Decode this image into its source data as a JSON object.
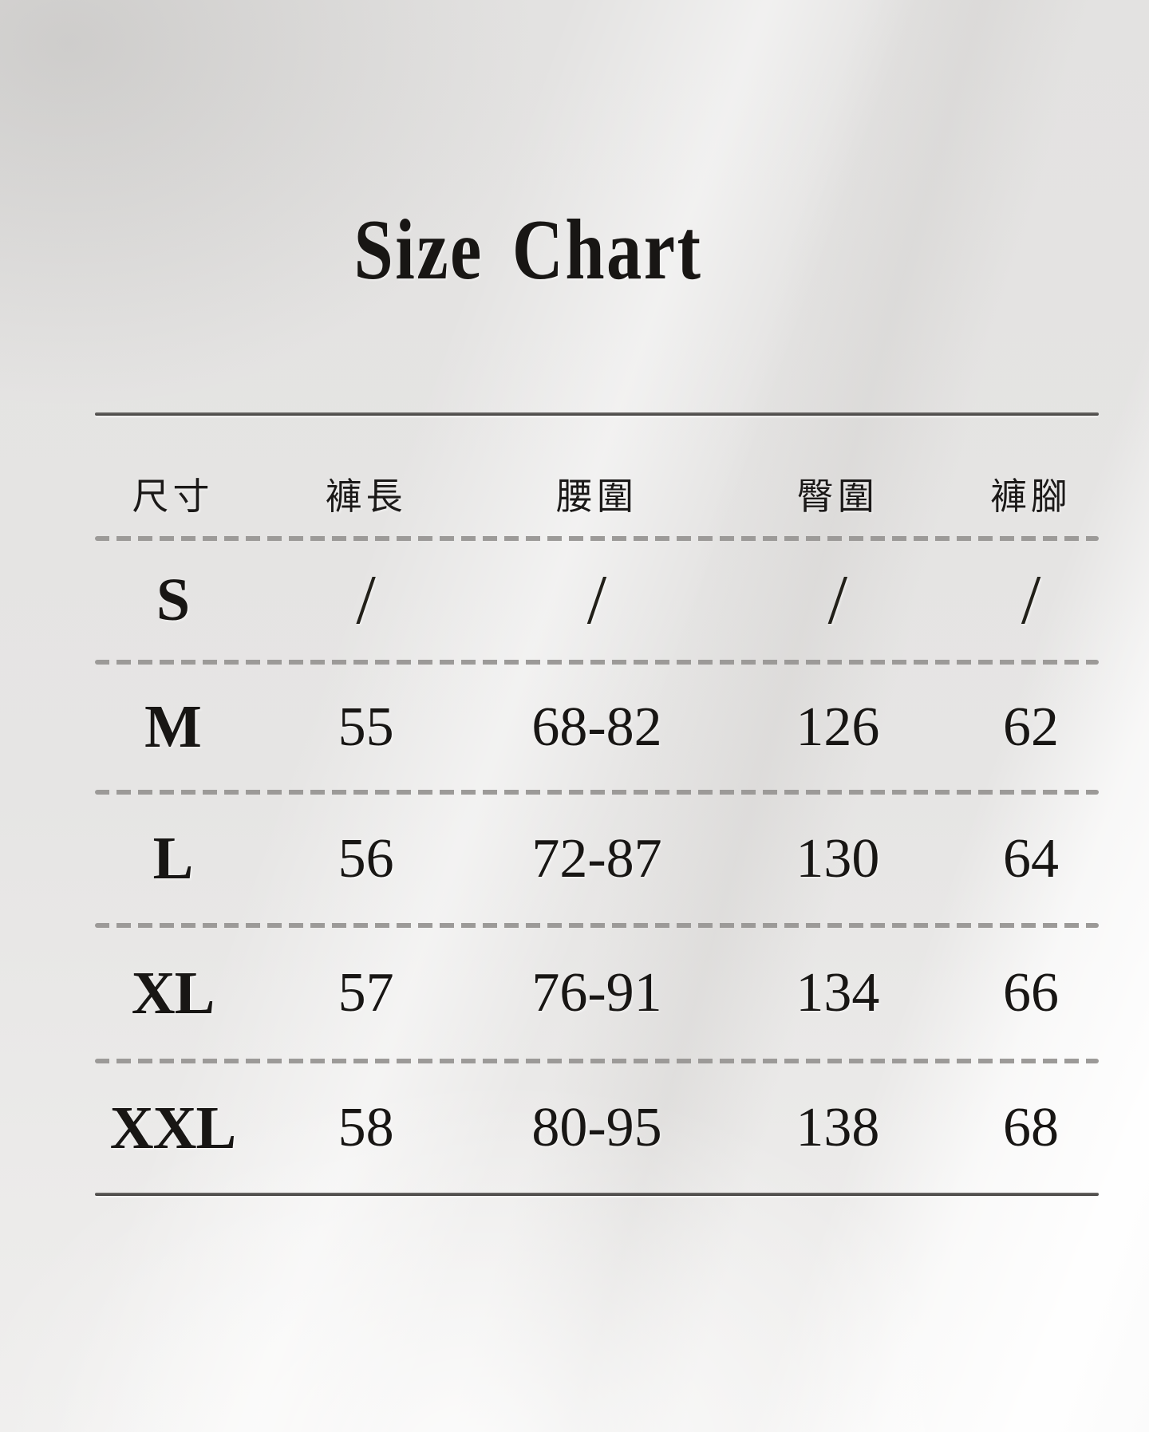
{
  "page_title": "Size Chart",
  "colors": {
    "background_base": "#e5e4e3",
    "text": "#181614",
    "solid_rule": "#4b4947",
    "dashed_rule": "#9c9a98"
  },
  "chart_data": {
    "type": "table",
    "title": "Size Chart",
    "columns": [
      "尺寸",
      "褲長",
      "腰圍",
      "臀圍",
      "褲腳"
    ],
    "rows": [
      {
        "size": "S",
        "values": [
          "/",
          "/",
          "/",
          "/"
        ]
      },
      {
        "size": "M",
        "values": [
          "55",
          "68-82",
          "126",
          "62"
        ]
      },
      {
        "size": "L",
        "values": [
          "56",
          "72-87",
          "130",
          "64"
        ]
      },
      {
        "size": "XL",
        "values": [
          "57",
          "76-91",
          "134",
          "66"
        ]
      },
      {
        "size": "XXL",
        "values": [
          "58",
          "80-95",
          "138",
          "68"
        ]
      }
    ],
    "layout_hints": {
      "grid": "horizontal rules only",
      "header_rule": "solid",
      "row_separators": "dashed",
      "bottom_rule": "solid"
    }
  }
}
